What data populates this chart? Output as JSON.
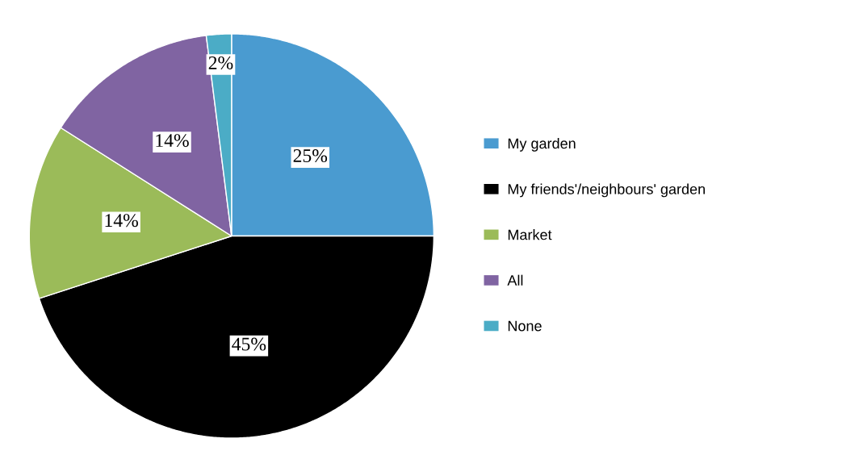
{
  "chart_data": {
    "type": "pie",
    "categories": [
      "My garden",
      "My friends'/neighbours' garden",
      "Market",
      "All",
      "None"
    ],
    "values": [
      25,
      45,
      14,
      14,
      2
    ],
    "colors": [
      "#4a9bd0",
      "#000000",
      "#9bbb59",
      "#8064a2",
      "#4bacc6"
    ],
    "value_labels": [
      "25%",
      "45%",
      "14%",
      "14%",
      "2%"
    ],
    "legend": "right"
  }
}
